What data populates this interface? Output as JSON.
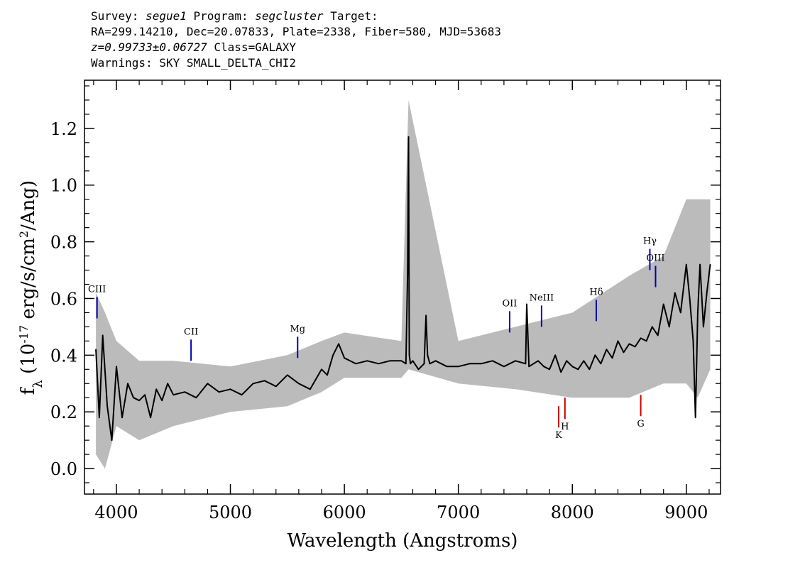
{
  "header": {
    "l1_a": "Survey:",
    "survey": "segue1",
    "l1_b": "Program:",
    "program": "segcluster",
    "l1_c": "Target:",
    "line2": "RA=299.14210, Dec=20.07833, Plate=2338, Fiber=580, MJD=53683",
    "redshift": "z=0.99733±0.06727",
    "class_text": "Class=GALAXY",
    "warnings": "Warnings: SKY SMALL_DELTA_CHI2"
  },
  "chart_data": {
    "type": "line",
    "title": "",
    "xlabel": "Wavelength (Angstroms)",
    "ylabel": "f_λ (10^-17 erg/s/cm^2/Ang)",
    "xlim": [
      3720,
      9300
    ],
    "ylim": [
      -0.09,
      1.37
    ],
    "x_ticks": [
      4000,
      5000,
      6000,
      7000,
      8000,
      9000
    ],
    "x_tick_labels": [
      "4000",
      "5000",
      "6000",
      "7000",
      "8000",
      "9000"
    ],
    "y_ticks": [
      0.0,
      0.2,
      0.4,
      0.6,
      0.8,
      1.0,
      1.2
    ],
    "y_tick_labels": [
      "0.0",
      "0.2",
      "0.4",
      "0.6",
      "0.8",
      "1.0",
      "1.2"
    ],
    "grid": false,
    "series": [
      {
        "name": "",
        "color": "#000000",
        "x": [
          3820,
          3850,
          3880,
          3920,
          3960,
          4000,
          4050,
          4100,
          4150,
          4200,
          4250,
          4300,
          4350,
          4400,
          4450,
          4500,
          4600,
          4700,
          4800,
          4900,
          5000,
          5100,
          5200,
          5300,
          5400,
          5500,
          5600,
          5700,
          5800,
          5850,
          5900,
          5950,
          6000,
          6100,
          6200,
          6300,
          6400,
          6500,
          6540,
          6555,
          6563,
          6570,
          6580,
          6600,
          6650,
          6700,
          6716,
          6730,
          6750,
          6800,
          6900,
          7000,
          7100,
          7200,
          7300,
          7400,
          7500,
          7590,
          7600,
          7620,
          7700,
          7750,
          7800,
          7850,
          7900,
          7950,
          8000,
          8050,
          8100,
          8150,
          8200,
          8250,
          8300,
          8350,
          8400,
          8450,
          8500,
          8550,
          8600,
          8650,
          8700,
          8750,
          8800,
          8850,
          8900,
          8950,
          9000,
          9030,
          9060,
          9080,
          9100,
          9120,
          9150,
          9180,
          9210
        ],
        "y": [
          0.42,
          0.18,
          0.47,
          0.22,
          0.1,
          0.36,
          0.18,
          0.3,
          0.25,
          0.24,
          0.26,
          0.18,
          0.28,
          0.24,
          0.3,
          0.26,
          0.27,
          0.25,
          0.3,
          0.27,
          0.28,
          0.26,
          0.3,
          0.31,
          0.29,
          0.33,
          0.3,
          0.28,
          0.35,
          0.33,
          0.4,
          0.44,
          0.39,
          0.37,
          0.38,
          0.37,
          0.38,
          0.38,
          0.37,
          0.69,
          1.17,
          0.4,
          0.37,
          0.38,
          0.35,
          0.37,
          0.54,
          0.4,
          0.37,
          0.38,
          0.36,
          0.36,
          0.37,
          0.37,
          0.38,
          0.36,
          0.38,
          0.37,
          0.58,
          0.36,
          0.38,
          0.36,
          0.35,
          0.4,
          0.34,
          0.38,
          0.36,
          0.35,
          0.38,
          0.35,
          0.4,
          0.37,
          0.42,
          0.39,
          0.45,
          0.41,
          0.44,
          0.43,
          0.46,
          0.45,
          0.5,
          0.47,
          0.58,
          0.5,
          0.62,
          0.55,
          0.72,
          0.6,
          0.45,
          0.18,
          0.55,
          0.72,
          0.5,
          0.62,
          0.72
        ]
      },
      {
        "name": "",
        "color": "#bbbbbb",
        "x": [
          3820,
          3900,
          4000,
          4200,
          4500,
          5000,
          5500,
          5800,
          6000,
          6500,
          6563,
          7000,
          7500,
          8000,
          8500,
          8800,
          9000,
          9100,
          9210
        ],
        "y_low": [
          0.05,
          0.0,
          0.15,
          0.1,
          0.15,
          0.2,
          0.22,
          0.27,
          0.32,
          0.32,
          0.35,
          0.3,
          0.28,
          0.25,
          0.25,
          0.3,
          0.3,
          0.25,
          0.35
        ],
        "y_high": [
          0.62,
          0.55,
          0.45,
          0.38,
          0.38,
          0.36,
          0.4,
          0.45,
          0.48,
          0.45,
          1.3,
          0.45,
          0.5,
          0.55,
          0.68,
          0.75,
          0.95,
          0.95,
          0.95
        ]
      }
    ],
    "line_markers": [
      {
        "label": "CIII",
        "x": 3830,
        "y": 0.53,
        "color": "#0000bb",
        "pos": "above"
      },
      {
        "label": "CII",
        "x": 4655,
        "y": 0.38,
        "color": "#0000bb",
        "pos": "above"
      },
      {
        "label": "Mg",
        "x": 5590,
        "y": 0.39,
        "color": "#0000bb",
        "pos": "above"
      },
      {
        "label": "OII",
        "x": 7450,
        "y": 0.48,
        "color": "#0000bb",
        "pos": "above"
      },
      {
        "label": "NeIII",
        "x": 7730,
        "y": 0.5,
        "color": "#0000bb",
        "pos": "above"
      },
      {
        "label": "Hδ",
        "x": 8210,
        "y": 0.52,
        "color": "#0000bb",
        "pos": "above"
      },
      {
        "label": "Hγ",
        "x": 8680,
        "y": 0.7,
        "color": "#0000bb",
        "pos": "above"
      },
      {
        "label": "OIII",
        "x": 8730,
        "y": 0.64,
        "color": "#0000bb",
        "pos": "above"
      },
      {
        "label": "K",
        "x": 7880,
        "y": 0.22,
        "color": "#cc0000",
        "pos": "below"
      },
      {
        "label": "H",
        "x": 7935,
        "y": 0.25,
        "color": "#cc0000",
        "pos": "below"
      },
      {
        "label": "G",
        "x": 8600,
        "y": 0.26,
        "color": "#cc0000",
        "pos": "below"
      }
    ]
  }
}
